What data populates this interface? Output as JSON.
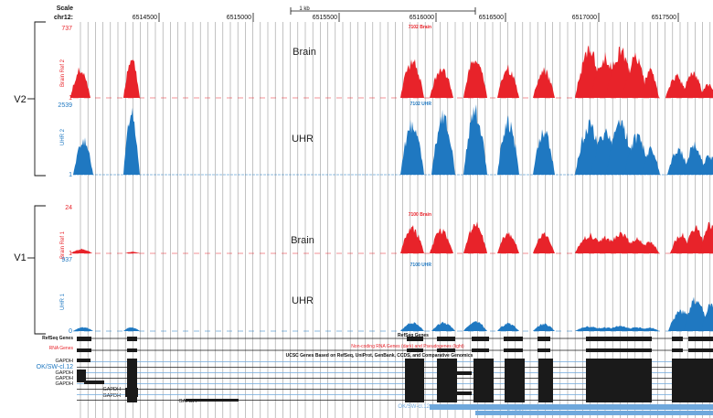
{
  "header": {
    "scale_label": "Scale",
    "chrom_label": "chr12:",
    "scale_bar_label": "1 kb",
    "positions": [
      "6514500",
      "6515000",
      "6515500",
      "6516000",
      "6516500",
      "6517000",
      "6517500"
    ]
  },
  "groups": [
    {
      "label": "V2"
    },
    {
      "label": "V1"
    }
  ],
  "tracks": [
    {
      "id": "brain2",
      "side_label": "Brain Ref 2",
      "center_label": "Brain",
      "y_max": "737",
      "y_min": "1",
      "mark": "7102 Brain",
      "color": "#e8232a",
      "peaks": [
        [
          88,
          11,
          43
        ],
        [
          144,
          9,
          58
        ],
        [
          451,
          13,
          57
        ],
        [
          483,
          13,
          45
        ],
        [
          520,
          13,
          62
        ],
        [
          556,
          12,
          44
        ],
        [
          595,
          12,
          42
        ],
        [
          645,
          16,
          70
        ],
        [
          662,
          16,
          62
        ],
        [
          679,
          16,
          72
        ],
        [
          695,
          14,
          60
        ],
        [
          711,
          10,
          40
        ],
        [
          740,
          12,
          33
        ],
        [
          758,
          12,
          38
        ],
        [
          775,
          10,
          20
        ]
      ]
    },
    {
      "id": "uhr2",
      "side_label": "UHR 2",
      "center_label": "UHR",
      "y_max": "2539",
      "y_min": "1",
      "mark": "7102 UHR",
      "color": "#1f78c1",
      "peaks": [
        [
          91,
          11,
          56
        ],
        [
          144,
          9,
          98
        ],
        [
          451,
          13,
          82
        ],
        [
          485,
          13,
          92
        ],
        [
          520,
          13,
          99
        ],
        [
          556,
          12,
          87
        ],
        [
          595,
          12,
          69
        ],
        [
          645,
          16,
          78
        ],
        [
          662,
          16,
          66
        ],
        [
          679,
          16,
          80
        ],
        [
          697,
          14,
          62
        ],
        [
          712,
          10,
          40
        ],
        [
          742,
          12,
          40
        ],
        [
          760,
          12,
          48
        ],
        [
          776,
          10,
          30
        ]
      ]
    },
    {
      "id": "brain1",
      "side_label": "Brain Ref 1",
      "center_label": "Brain",
      "y_max": "24",
      "y_min": "1",
      "mark": "7100 Brain",
      "color": "#e8232a",
      "peaks": [
        [
          89,
          12,
          10
        ],
        [
          145,
          8,
          4
        ],
        [
          451,
          13,
          62
        ],
        [
          483,
          13,
          55
        ],
        [
          520,
          13,
          70
        ],
        [
          556,
          12,
          50
        ],
        [
          595,
          12,
          45
        ],
        [
          645,
          16,
          45
        ],
        [
          662,
          16,
          38
        ],
        [
          679,
          16,
          48
        ],
        [
          697,
          14,
          36
        ],
        [
          711,
          10,
          28
        ],
        [
          745,
          12,
          46
        ],
        [
          761,
          12,
          62
        ],
        [
          776,
          10,
          75
        ]
      ]
    },
    {
      "id": "uhr1",
      "side_label": "UHR 1",
      "center_label": "UHR",
      "y_max": "937",
      "y_min": "0",
      "mark": "7100 UHR",
      "color": "#1f78c1",
      "peaks": [
        [
          91,
          11,
          6
        ],
        [
          144,
          9,
          6
        ],
        [
          451,
          13,
          13
        ],
        [
          485,
          13,
          13
        ],
        [
          520,
          13,
          15
        ],
        [
          556,
          12,
          12
        ],
        [
          595,
          12,
          11
        ],
        [
          645,
          16,
          7
        ],
        [
          662,
          16,
          6
        ],
        [
          679,
          16,
          8
        ],
        [
          697,
          14,
          6
        ],
        [
          711,
          10,
          5
        ],
        [
          745,
          14,
          32
        ],
        [
          762,
          14,
          52
        ],
        [
          777,
          10,
          40
        ]
      ]
    }
  ],
  "annotations": {
    "refseq_label": "RefSeq Genes",
    "rna_genes_label": "RNA Genes",
    "noncoding_label": "Non-coding RNA Genes (dark) and Pseudogenes (light)",
    "ucsc_label": "UCSC Genes Based on RefSeq, UniProt, GenBank, CCDS, and Comparative Genomics",
    "okswcl_label": "OK/SW-cl.12",
    "okswcl_right_label": "OK/SW-cl.12",
    "gapdh_labels": [
      "GAPDH",
      "GAPDH",
      "GAPDH",
      "GAPDH",
      "GAPDH",
      "GAPDH",
      "GAPDH",
      "GAPDH"
    ],
    "gapdh_bottom": "GAPDH"
  },
  "colors": {
    "red": "#e8232a",
    "blue": "#1f78c1",
    "light_blue": "#6fa8dc",
    "dark": "#1a1a1a",
    "grid": "#9a9a9a"
  }
}
